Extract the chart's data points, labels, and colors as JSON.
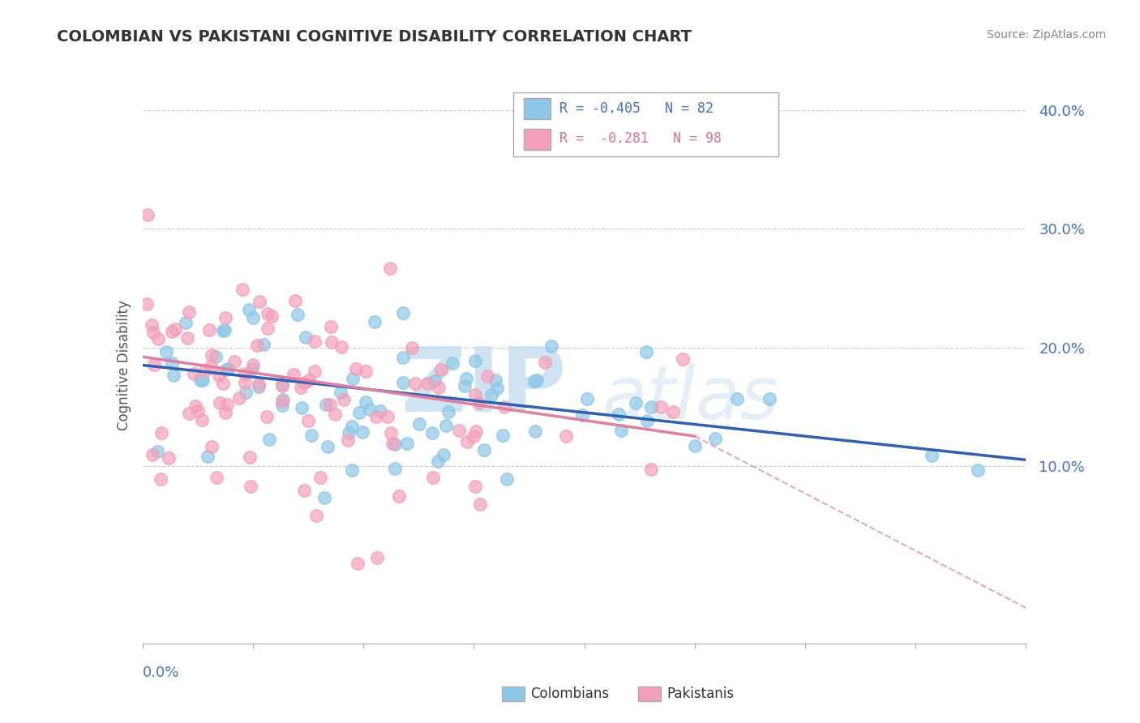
{
  "title": "COLOMBIAN VS PAKISTANI COGNITIVE DISABILITY CORRELATION CHART",
  "source": "Source: ZipAtlas.com",
  "ylabel": "Cognitive Disability",
  "watermark_zip": "ZIP",
  "watermark_atlas": "atlas",
  "xlim": [
    0.0,
    0.4
  ],
  "ylim": [
    -0.05,
    0.42
  ],
  "yticks": [
    0.1,
    0.2,
    0.3,
    0.4
  ],
  "ytick_labels": [
    "10.0%",
    "20.0%",
    "30.0%",
    "40.0%"
  ],
  "grid_color": "#cccccc",
  "background_color": "#ffffff",
  "colombian_color": "#8ec8e8",
  "pakistani_color": "#f4a0b8",
  "colombian_line_color": "#3060b0",
  "pakistani_line_color": "#e080a0",
  "colombian_R": -0.405,
  "colombian_N": 82,
  "pakistani_R": -0.281,
  "pakistani_N": 98,
  "col_intercept": 0.185,
  "col_slope": -0.2,
  "pak_intercept": 0.195,
  "pak_slope": -0.45,
  "col_scatter_std": 0.04,
  "pak_scatter_std": 0.045,
  "seed": 42
}
